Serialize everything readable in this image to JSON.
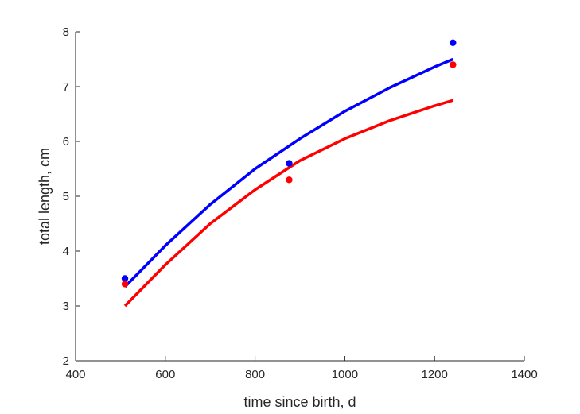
{
  "chart_data": {
    "type": "scatter",
    "title": "",
    "xlabel": "time since birth, d",
    "ylabel": "total length, cm",
    "xlim": [
      400,
      1400
    ],
    "ylim": [
      2,
      8
    ],
    "xticks": [
      400,
      600,
      800,
      1000,
      1200,
      1400
    ],
    "yticks": [
      2,
      3,
      4,
      5,
      6,
      7,
      8
    ],
    "xtick_labels": [
      "400",
      "600",
      "800",
      "1000",
      "1200",
      "1400"
    ],
    "ytick_labels": [
      "2",
      "3",
      "4",
      "5",
      "6",
      "7",
      "8"
    ],
    "grid": false,
    "series": [
      {
        "name": "blue data",
        "kind": "points",
        "color": "#0000ff",
        "x": [
          510,
          876,
          1241
        ],
        "y": [
          3.5,
          5.6,
          7.8
        ]
      },
      {
        "name": "red data",
        "kind": "points",
        "color": "#ff0000",
        "x": [
          510,
          876,
          1241
        ],
        "y": [
          3.4,
          5.3,
          7.4
        ]
      },
      {
        "name": "blue fit",
        "kind": "line",
        "color": "#0000ff",
        "x": [
          510,
          600,
          700,
          800,
          900,
          1000,
          1100,
          1200,
          1241
        ],
        "y": [
          3.35,
          4.1,
          4.85,
          5.5,
          6.05,
          6.55,
          6.98,
          7.36,
          7.5
        ]
      },
      {
        "name": "red fit",
        "kind": "line",
        "color": "#ff0000",
        "x": [
          510,
          600,
          700,
          800,
          900,
          1000,
          1100,
          1200,
          1241
        ],
        "y": [
          3.0,
          3.75,
          4.5,
          5.12,
          5.65,
          6.05,
          6.38,
          6.65,
          6.75
        ]
      }
    ]
  }
}
